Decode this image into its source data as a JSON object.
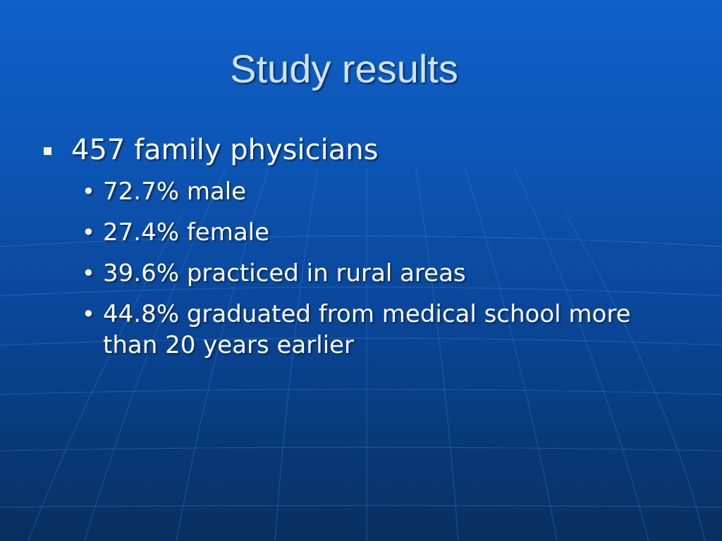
{
  "slide": {
    "title": "Study results",
    "bullet": {
      "text": "457 family physicians",
      "subitems": [
        {
          "text": "72.7% male"
        },
        {
          "text": "27.4% female"
        },
        {
          "text": "39.6% practiced in rural areas"
        },
        {
          "text": "44.8% graduated from medical school more than 20 years earlier"
        }
      ]
    }
  },
  "theme": {
    "background_top": "#1060c8",
    "background_bottom": "#07305f",
    "title_color": "#cfe3f7",
    "text_color": "#ffffff",
    "bullet_color": "#fefbe8"
  }
}
